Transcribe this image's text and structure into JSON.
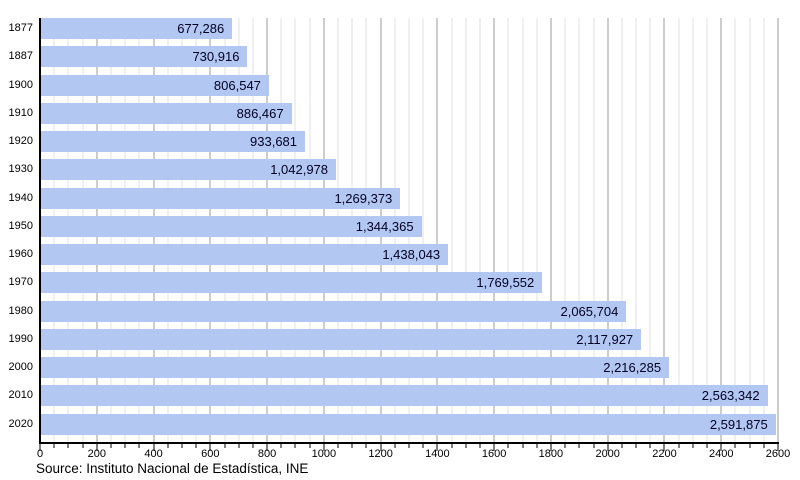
{
  "chart_data": {
    "type": "bar",
    "orientation": "horizontal",
    "title": "",
    "xlabel": "",
    "ylabel": "",
    "grid": "on",
    "legend": "none",
    "categories": [
      "1877",
      "1887",
      "1900",
      "1910",
      "1920",
      "1930",
      "1940",
      "1950",
      "1960",
      "1970",
      "1980",
      "1990",
      "2000",
      "2010",
      "2020"
    ],
    "values": [
      677286,
      730916,
      806547,
      886467,
      933681,
      1042978,
      1269373,
      1344365,
      1438043,
      1769552,
      2065704,
      2117927,
      2216285,
      2563342,
      2591875
    ],
    "value_labels": [
      "677,286",
      "730,916",
      "806,547",
      "886,467",
      "933,681",
      "1,042,978",
      "1,269,373",
      "1,344,365",
      "1,438,043",
      "1,769,552",
      "2,065,704",
      "2,117,927",
      "2,216,285",
      "2,563,342",
      "2,591,875"
    ],
    "x_axis": {
      "min": 0,
      "max": 2600,
      "major_tick": 200,
      "minor_tick": 50,
      "unit": "thousands",
      "tick_labels": [
        "0",
        "200",
        "400",
        "600",
        "800",
        "1000",
        "1200",
        "1400",
        "1600",
        "1800",
        "2000",
        "2200",
        "2400",
        "2600"
      ]
    },
    "source": "Source: Instituto Nacional de Estadística, INE",
    "colors": {
      "bar_fill": "#b3c7f3",
      "bar_label_text": "#000022",
      "minor_gridline": "#e2e2e2",
      "major_gridline": "#9b9b9b",
      "axis": "#000000",
      "text": "#000000",
      "background": "#ffffff"
    }
  }
}
